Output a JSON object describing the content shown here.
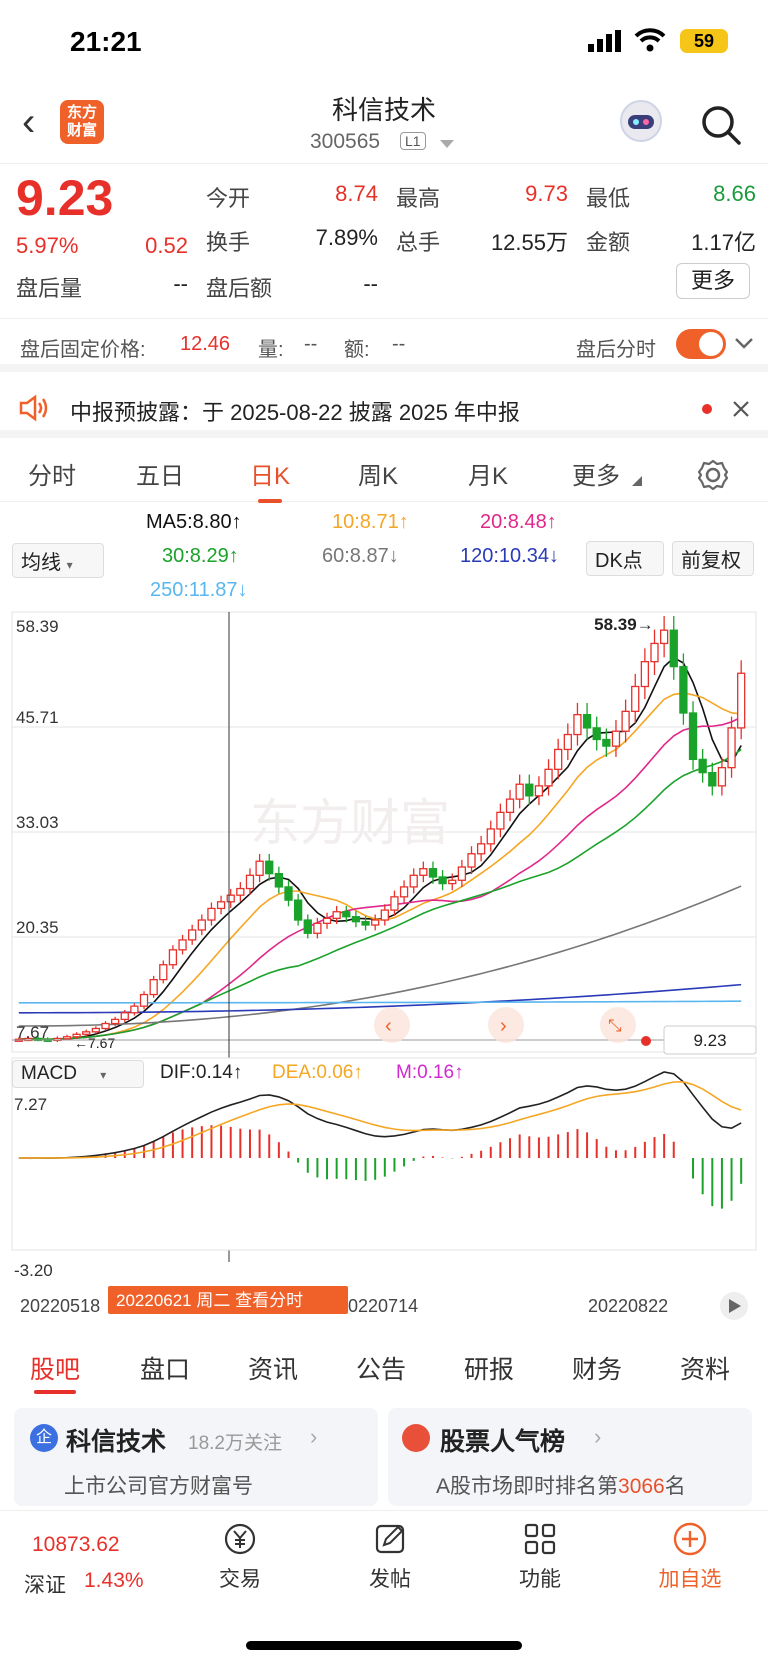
{
  "status": {
    "time": "21:21",
    "battery": "59"
  },
  "header": {
    "logo_line1": "东方",
    "logo_line2": "财富",
    "name": "科信技术",
    "code": "300565",
    "level": "L1"
  },
  "quote": {
    "price": "9.23",
    "change_pct": "5.97%",
    "change": "0.52",
    "open_label": "今开",
    "open": "8.74",
    "high_label": "最高",
    "high": "9.73",
    "low_label": "最低",
    "low": "8.66",
    "turnover_label": "换手",
    "turnover": "7.89%",
    "volume_label": "总手",
    "volume": "12.55万",
    "amount_label": "金额",
    "amount": "1.17亿",
    "after_vol_label": "盘后量",
    "after_vol": "--",
    "after_amt_label": "盘后额",
    "after_amt": "--",
    "more": "更多"
  },
  "after_hours": {
    "fixed_label": "盘后固定价格:",
    "fixed_price": "12.46",
    "vol_label": "量:",
    "vol": "--",
    "amt_label": "额:",
    "amt": "--",
    "timeshare_label": "盘后分时"
  },
  "notice": {
    "text": "中报预披露：于 2025-08-22 披露 2025 年中报"
  },
  "ktabs": [
    "分时",
    "五日",
    "日K",
    "周K",
    "月K",
    "更多"
  ],
  "ma_legend": {
    "selector": "均线",
    "ma5": "MA5:8.80↑",
    "ma10": "10:8.71↑",
    "ma20": "20:8.48↑",
    "ma30": "30:8.29↑",
    "ma60": "60:8.87↓",
    "ma120": "120:10.34↓",
    "ma250": "250:11.87↓",
    "dk": "DK点",
    "adjust": "前复权",
    "colors": {
      "ma5": "#111111",
      "ma10": "#f5a623",
      "ma20": "#e0288a",
      "ma30": "#1aa32a",
      "ma60": "#777777",
      "ma120": "#2a3bb8",
      "ma250": "#5ab6ef"
    }
  },
  "chart_data": {
    "type": "candlestick",
    "y_ticks": [
      "58.39",
      "45.71",
      "33.03",
      "20.35",
      "7.67"
    ],
    "ylim": [
      7.67,
      58.39
    ],
    "max_label": "58.39→",
    "min_label": "←7.67",
    "current_price": "9.23",
    "watermark": "东方财富",
    "x_labels": [
      "20220518",
      "20220714",
      "20220822"
    ],
    "cursor_label": "20220621 周二 查看分时",
    "closes": [
      8.0,
      8.1,
      8.0,
      7.9,
      8.1,
      8.3,
      8.6,
      8.9,
      9.3,
      9.9,
      10.4,
      11.2,
      12.0,
      13.4,
      15.2,
      17.0,
      18.8,
      20.0,
      21.2,
      22.4,
      23.8,
      24.6,
      25.4,
      26.2,
      27.8,
      29.5,
      28.0,
      26.4,
      24.8,
      22.4,
      20.8,
      22.0,
      22.6,
      23.4,
      22.8,
      22.2,
      21.8,
      22.4,
      23.6,
      25.2,
      26.4,
      27.8,
      28.6,
      27.6,
      26.8,
      27.2,
      28.8,
      30.4,
      31.6,
      33.4,
      35.4,
      37.0,
      38.8,
      37.4,
      38.6,
      40.6,
      43.0,
      44.8,
      47.2,
      45.6,
      44.2,
      43.4,
      45.2,
      47.6,
      50.6,
      53.6,
      55.8,
      57.4,
      53.0,
      47.4,
      41.8,
      40.2,
      38.6,
      40.8,
      45.6,
      52.2
    ],
    "macd": {
      "dif": "DIF:0.14↑",
      "dea": "DEA:0.06↑",
      "m": "M:0.16↑",
      "top": "7.27",
      "bottom": "-3.20",
      "selector": "MACD"
    }
  },
  "bottom_tabs": [
    "股吧",
    "盘口",
    "资讯",
    "公告",
    "研报",
    "财务",
    "资料"
  ],
  "card_left": {
    "badge": "企",
    "title": "科信技术",
    "followers": "18.2万关注",
    "subtitle": "上市公司官方财富号"
  },
  "card_right": {
    "title": "股票人气榜",
    "rank_prefix": "A股市场即时排名第",
    "rank": "3066",
    "rank_suffix": "名"
  },
  "bottom_bar": {
    "index_value": "10873.62",
    "index_name": "深证",
    "index_pct": "1.43%",
    "trade": "交易",
    "post": "发帖",
    "func": "功能",
    "add": "加自选"
  }
}
